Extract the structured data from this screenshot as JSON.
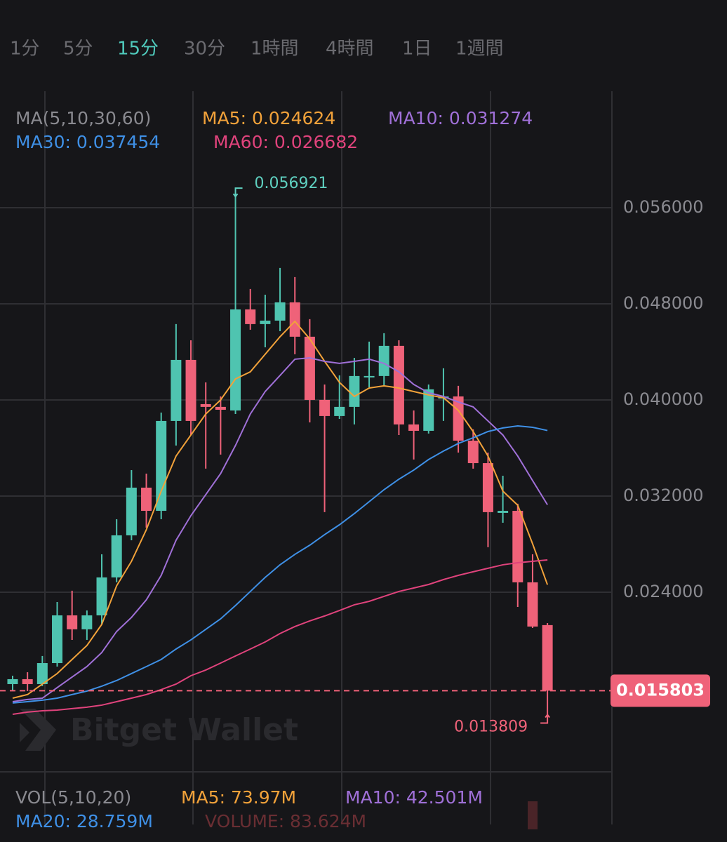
{
  "tabs": {
    "items": [
      "1分",
      "5分",
      "15分",
      "30分",
      "1時間",
      "4時間",
      "1日",
      "1週間"
    ],
    "active": 2
  },
  "chart_data": {
    "type": "candlestick",
    "up_color": "#4fc4b0",
    "down_color": "#ef6279",
    "ylim": [
      0.00905,
      0.06569
    ],
    "yticks": [
      {
        "value": 0.056,
        "label": "0.056000"
      },
      {
        "value": 0.048,
        "label": "0.048000"
      },
      {
        "value": 0.04,
        "label": "0.040000"
      },
      {
        "value": 0.032,
        "label": "0.032000"
      },
      {
        "value": 0.024,
        "label": "0.024000"
      }
    ],
    "grid": true,
    "ma_title": "MA(5,10,30,60)",
    "open": [
      0.01635,
      0.01676,
      0.01635,
      0.0181,
      0.02207,
      0.02091,
      0.02207,
      0.02523,
      0.02873,
      0.0327,
      0.03077,
      0.03825,
      0.04333,
      0.03965,
      0.03942,
      0.03912,
      0.04753,
      0.04631,
      0.0466,
      0.04812,
      0.04526,
      0.04,
      0.03866,
      0.03942,
      0.04187,
      0.04199,
      0.0445,
      0.03796,
      0.03743,
      0.04012,
      0.04029,
      0.03661,
      0.03474,
      0.0306,
      0.03077,
      0.02482,
      0.02126
    ],
    "high": [
      0.01705,
      0.01734,
      0.01869,
      0.02318,
      0.02412,
      0.02248,
      0.02715,
      0.03007,
      0.03416,
      0.03387,
      0.03895,
      0.04631,
      0.04496,
      0.04146,
      0.04029,
      0.056921,
      0.04923,
      0.04876,
      0.05098,
      0.05022,
      0.04672,
      0.04128,
      0.04204,
      0.0435,
      0.04485,
      0.04555,
      0.04496,
      0.03912,
      0.04128,
      0.04263,
      0.04117,
      0.03755,
      0.03562,
      0.03369,
      0.03136,
      0.02715,
      0.02143
    ],
    "low": [
      0.01577,
      0.01577,
      0.01618,
      0.01781,
      0.02003,
      0.02003,
      0.02131,
      0.02482,
      0.02832,
      0.02937,
      0.03007,
      0.0362,
      0.03708,
      0.03428,
      0.03545,
      0.03883,
      0.04584,
      0.04438,
      0.04572,
      0.0438,
      0.03813,
      0.03066,
      0.03842,
      0.03796,
      0.04105,
      0.04117,
      0.03708,
      0.03504,
      0.0372,
      0.03825,
      0.03562,
      0.03428,
      0.02774,
      0.02978,
      0.02277,
      0.02102,
      0.013809
    ],
    "close": [
      0.01676,
      0.01635,
      0.0181,
      0.02207,
      0.02091,
      0.02207,
      0.02523,
      0.02873,
      0.0327,
      0.03077,
      0.03825,
      0.04333,
      0.03825,
      0.03942,
      0.03918,
      0.04753,
      0.04631,
      0.0466,
      0.04812,
      0.04526,
      0.04,
      0.03866,
      0.03942,
      0.04199,
      0.04199,
      0.0445,
      0.03796,
      0.03743,
      0.04088,
      0.04029,
      0.03661,
      0.03474,
      0.03066,
      0.03077,
      0.02482,
      0.02114,
      0.015803
    ],
    "series": [
      {
        "name": "MA5: 0.024624",
        "color": "#f2a23a",
        "values": [
          0.01518,
          0.01548,
          0.01635,
          0.01723,
          0.0184,
          0.01956,
          0.02132,
          0.02453,
          0.02657,
          0.0292,
          0.03241,
          0.03533,
          0.03708,
          0.03883,
          0.04,
          0.04175,
          0.04234,
          0.0438,
          0.04526,
          0.04654,
          0.04508,
          0.04321,
          0.04146,
          0.04029,
          0.04099,
          0.04117,
          0.04099,
          0.0407,
          0.04041,
          0.04018,
          0.03913,
          0.03737,
          0.03533,
          0.03241,
          0.03124,
          0.02803,
          0.024624
        ]
      },
      {
        "name": "MA10: 0.031274",
        "color": "#a070d8",
        "values": [
          0.01489,
          0.01507,
          0.01518,
          0.01606,
          0.01694,
          0.01781,
          0.01898,
          0.02073,
          0.0219,
          0.02336,
          0.0254,
          0.02832,
          0.03037,
          0.03212,
          0.03387,
          0.03621,
          0.03883,
          0.0407,
          0.04204,
          0.04339,
          0.0435,
          0.04321,
          0.04304,
          0.04321,
          0.04339,
          0.04304,
          0.04234,
          0.04129,
          0.04059,
          0.04029,
          0.03983,
          0.03942,
          0.03825,
          0.03708,
          0.03533,
          0.03329,
          0.031274
        ]
      },
      {
        "name": "MA30: 0.037454",
        "color": "#3f90e6",
        "values": [
          0.01478,
          0.01489,
          0.01501,
          0.01518,
          0.01548,
          0.01577,
          0.01618,
          0.01665,
          0.01723,
          0.01781,
          0.0184,
          0.01927,
          0.02003,
          0.02091,
          0.02178,
          0.02289,
          0.02406,
          0.02523,
          0.02628,
          0.02715,
          0.02791,
          0.02879,
          0.02961,
          0.03054,
          0.03153,
          0.03253,
          0.0334,
          0.03416,
          0.03504,
          0.03574,
          0.03638,
          0.03685,
          0.03737,
          0.03767,
          0.03784,
          0.03772,
          0.037454
        ]
      },
      {
        "name": "MA60: 0.026682",
        "color": "#e0437c",
        "values": [
          0.01384,
          0.01402,
          0.01413,
          0.01419,
          0.01431,
          0.01443,
          0.0146,
          0.01489,
          0.01518,
          0.01548,
          0.01589,
          0.01635,
          0.01705,
          0.01752,
          0.0181,
          0.01869,
          0.01927,
          0.01986,
          0.02056,
          0.02114,
          0.02161,
          0.02202,
          0.02248,
          0.02295,
          0.02324,
          0.02365,
          0.02406,
          0.02435,
          0.02464,
          0.02505,
          0.0254,
          0.0257,
          0.02599,
          0.02628,
          0.02645,
          0.02657,
          0.026682
        ]
      }
    ]
  },
  "watermark": "Bitget Wallet",
  "volume_panel": {
    "title": "VOL(5,10,20)",
    "items": [
      {
        "text": "MA5: 73.97M",
        "color": "#f2a23a"
      },
      {
        "text": "MA10: 42.501M",
        "color": "#a070d8"
      },
      {
        "text": "MA20: 28.759M",
        "color": "#3f90e6"
      },
      {
        "text": "VOLUME: 83.624M",
        "color": "#6a2e33"
      }
    ]
  }
}
